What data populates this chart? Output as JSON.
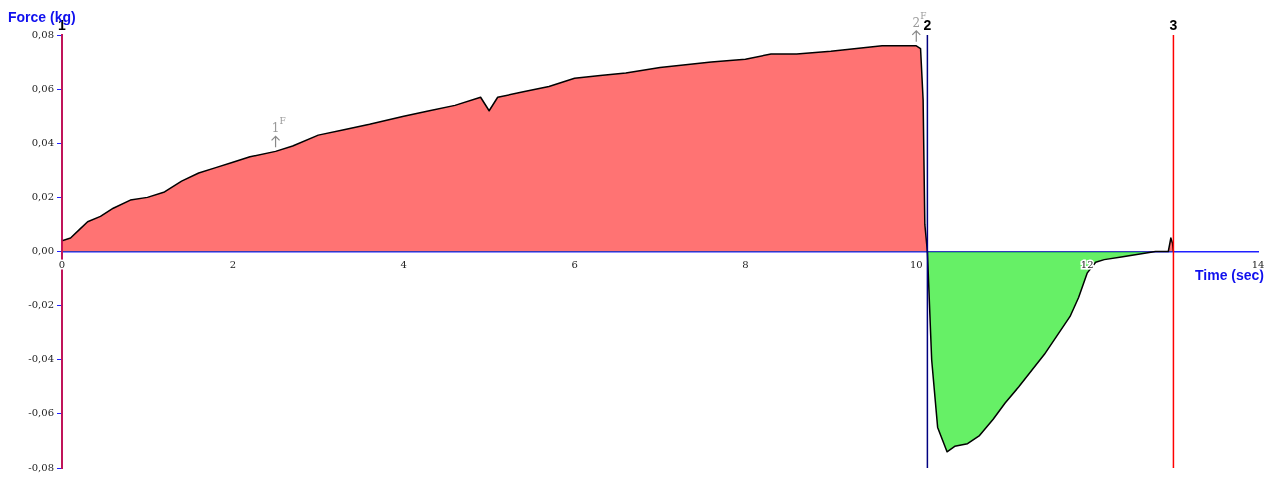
{
  "chart_data": {
    "type": "area",
    "xlabel": "Time (sec)",
    "ylabel": "Force (kg)",
    "xlim": [
      0,
      14
    ],
    "xticks": [
      0,
      2,
      4,
      6,
      8,
      10,
      12,
      14
    ],
    "ylim": [
      -0.08,
      0.08
    ],
    "yticks": [
      {
        "value": -0.08,
        "label": "-0,08"
      },
      {
        "value": -0.06,
        "label": "-0,06"
      },
      {
        "value": -0.04,
        "label": "-0,04"
      },
      {
        "value": -0.02,
        "label": "-0,02"
      },
      {
        "value": 0,
        "label": "0,00"
      },
      {
        "value": 0.02,
        "label": "0,02"
      },
      {
        "value": 0.04,
        "label": "0,04"
      },
      {
        "value": 0.06,
        "label": "0,06"
      },
      {
        "value": 0.08,
        "label": "0,08"
      }
    ],
    "grid": false,
    "legend": false,
    "series": [
      {
        "color": "#000000",
        "x": [
          0,
          0.1,
          0.2,
          0.3,
          0.45,
          0.6,
          0.8,
          1.0,
          1.2,
          1.4,
          1.6,
          1.8,
          2.0,
          2.2,
          2.5,
          2.7,
          3.0,
          3.3,
          3.6,
          4.0,
          4.3,
          4.6,
          4.9,
          5.0,
          5.1,
          5.4,
          5.7,
          6.0,
          6.3,
          6.6,
          7.0,
          7.3,
          7.6,
          8.0,
          8.3,
          8.6,
          9.0,
          9.3,
          9.6,
          10.0,
          10.05,
          10.08,
          10.1,
          10.13,
          10.18,
          10.25,
          10.36,
          10.45,
          10.6,
          10.74,
          10.9,
          11.04,
          11.2,
          11.35,
          11.5,
          11.65,
          11.8,
          11.9,
          12.0,
          12.1,
          12.2,
          12.4,
          12.6,
          12.8,
          12.95,
          12.98,
          13.0,
          13.01
        ],
        "values": [
          0.004,
          0.005,
          0.008,
          0.011,
          0.013,
          0.016,
          0.019,
          0.02,
          0.022,
          0.026,
          0.029,
          0.031,
          0.033,
          0.035,
          0.037,
          0.039,
          0.043,
          0.045,
          0.047,
          0.05,
          0.052,
          0.054,
          0.057,
          0.052,
          0.057,
          0.059,
          0.061,
          0.064,
          0.065,
          0.066,
          0.068,
          0.069,
          0.07,
          0.071,
          0.073,
          0.073,
          0.074,
          0.075,
          0.076,
          0.076,
          0.075,
          0.056,
          0.01,
          0,
          -0.04,
          -0.065,
          -0.074,
          -0.072,
          -0.071,
          -0.068,
          -0.062,
          -0.056,
          -0.05,
          -0.044,
          -0.038,
          -0.031,
          -0.024,
          -0.017,
          -0.008,
          -0.004,
          -0.003,
          -0.002,
          -0.001,
          0,
          0,
          0.005,
          0.003,
          0
        ]
      }
    ],
    "ref_lines": [
      {
        "axis": "x",
        "value": 0,
        "color": "#c0145a"
      },
      {
        "axis": "x",
        "value": 10.13,
        "color": "#000080"
      },
      {
        "axis": "x",
        "value": 13.01,
        "color": "#ff0000"
      }
    ],
    "annotations": [
      {
        "text": "1$^{F}$",
        "x": 2.5,
        "y": 0.037
      },
      {
        "text": "2$^{F}$",
        "x": 10.0,
        "y": 0.076
      },
      {
        "text": "1",
        "x": 0,
        "y": 0.08
      },
      {
        "text": "2",
        "x": 10.13,
        "y": 0.08
      },
      {
        "text": "3",
        "x": 13.01,
        "y": 0.08
      }
    ]
  }
}
